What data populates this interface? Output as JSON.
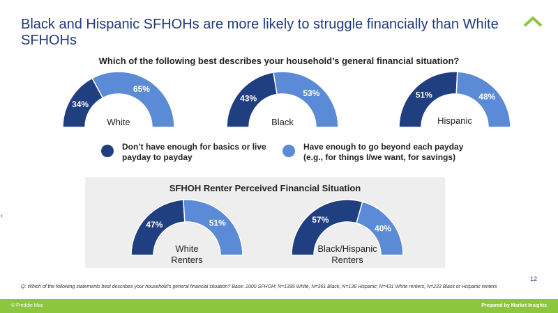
{
  "title": "Black and Hispanic SFHOHs are more likely to struggle financially than White SFHOHs",
  "question": "Which of the following best describes your household’s general financial situation?",
  "colors": {
    "dark": "#1f3f80",
    "light": "#5b8ad6",
    "accent": "#8cc63f",
    "title": "#1f3a7a"
  },
  "logo_icon": "roof-chevron-icon",
  "legend": [
    {
      "label": "Don’t have enough for basics or live payday to payday",
      "color": "#1f3f80"
    },
    {
      "label": "Have enough to go beyond each payday (e.g., for things I/we want, for savings)",
      "color": "#5b8ad6"
    }
  ],
  "renter_section_title": "SFHOH Renter Perceived Financial Situation",
  "chart_data": [
    {
      "type": "pie",
      "label": "White",
      "series": [
        {
          "name": "Don’t have enough for basics or live payday to payday",
          "values": [
            34
          ]
        },
        {
          "name": "Have enough to go beyond each payday (e.g., for things I/we want, for savings)",
          "values": [
            65
          ]
        }
      ],
      "value_labels": [
        "34%",
        "65%"
      ]
    },
    {
      "type": "pie",
      "label": "Black",
      "series": [
        {
          "name": "Don’t have enough for basics or live payday to payday",
          "values": [
            43
          ]
        },
        {
          "name": "Have enough to go beyond each payday (e.g., for things I/we want, for savings)",
          "values": [
            53
          ]
        }
      ],
      "value_labels": [
        "43%",
        "53%"
      ]
    },
    {
      "type": "pie",
      "label": "Hispanic",
      "series": [
        {
          "name": "Don’t have enough for basics or live payday to payday",
          "values": [
            51
          ]
        },
        {
          "name": "Have enough to go beyond each payday (e.g., for things I/we want, for savings)",
          "values": [
            48
          ]
        }
      ],
      "value_labels": [
        "51%",
        "48%"
      ]
    },
    {
      "type": "pie",
      "label": "White Renters",
      "series": [
        {
          "name": "Don’t have enough for basics or live payday to payday",
          "values": [
            47
          ]
        },
        {
          "name": "Have enough to go beyond each payday (e.g., for things I/we want, for savings)",
          "values": [
            51
          ]
        }
      ],
      "value_labels": [
        "47%",
        "51%"
      ]
    },
    {
      "type": "pie",
      "label": "Black/Hispanic Renters",
      "series": [
        {
          "name": "Don’t have enough for basics or live payday to payday",
          "values": [
            57
          ]
        },
        {
          "name": "Have enough to go beyond each payday (e.g., for things I/we want, for savings)",
          "values": [
            40
          ]
        }
      ],
      "value_labels": [
        "57%",
        "40%"
      ]
    }
  ],
  "page_number": "12",
  "footnote": "Q: Which of the following statements best describes your household’s general financial situation? Base: 2000 SFHOH; N=1395 White, N=361 Black, N=138 Hispanic; N=431 White renters, N=233 Black or Hispanic renters",
  "footer": {
    "left": "© Freddie Mac",
    "right": "Prepared by Market Insights"
  },
  "slide_marker": "+"
}
